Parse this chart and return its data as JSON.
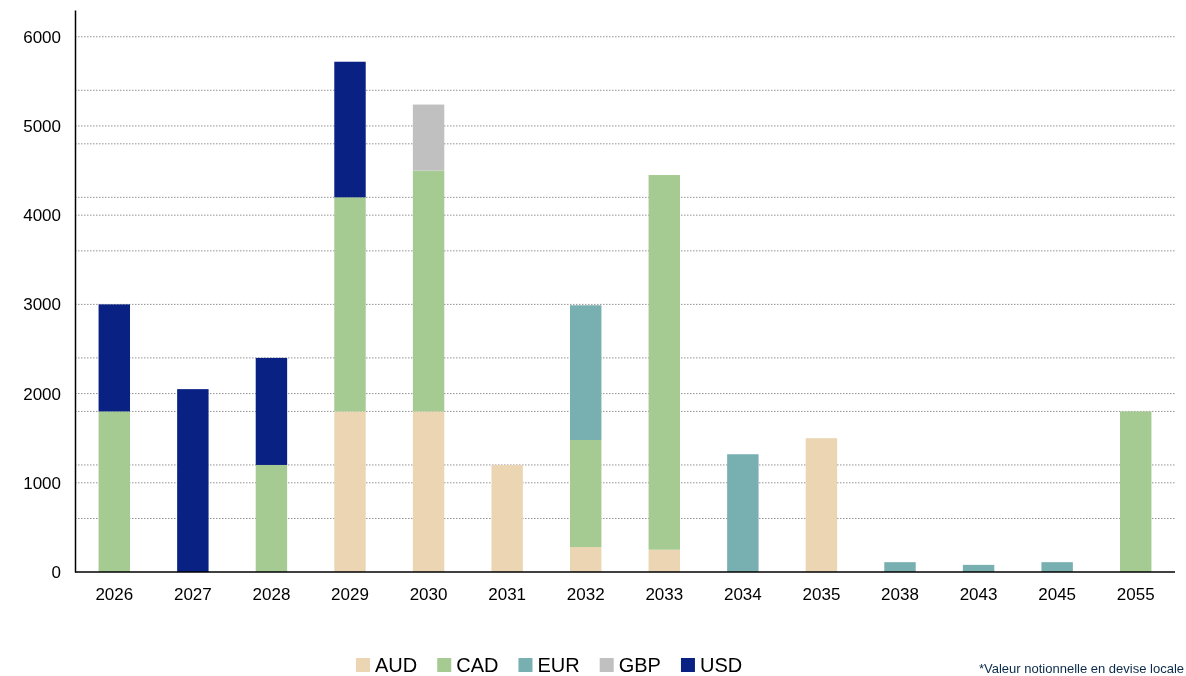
{
  "chart_data": {
    "type": "bar",
    "stacked": true,
    "categories": [
      "2026",
      "2027",
      "2028",
      "2029",
      "2030",
      "2031",
      "2032",
      "2033",
      "2034",
      "2035",
      "2038",
      "2043",
      "2045",
      "2055"
    ],
    "series": [
      {
        "name": "AUD",
        "color": "#ecd5b3",
        "values": [
          null,
          null,
          null,
          1800,
          1800,
          1200,
          280,
          250,
          null,
          1500,
          null,
          null,
          null,
          null
        ]
      },
      {
        "name": "CAD",
        "color": "#a5cb93",
        "values": [
          1800,
          null,
          1200,
          2400,
          2700,
          null,
          1200,
          4200,
          null,
          null,
          null,
          null,
          null,
          1800
        ]
      },
      {
        "name": "EUR",
        "color": "#78afb0",
        "values": [
          null,
          null,
          null,
          null,
          null,
          null,
          1510,
          null,
          1320,
          null,
          110,
          80,
          110,
          null
        ]
      },
      {
        "name": "GBP",
        "color": "#c0c0c0",
        "values": [
          null,
          null,
          null,
          null,
          740,
          null,
          null,
          null,
          null,
          null,
          null,
          null,
          null,
          null
        ]
      },
      {
        "name": "USD",
        "color": "#0a2184",
        "values": [
          1200,
          2050,
          1200,
          1520,
          null,
          null,
          null,
          null,
          null,
          null,
          null,
          null,
          null,
          null
        ]
      }
    ],
    "ylim": [
      0,
      6300
    ],
    "yticks": [
      0,
      {
        "value": 600,
        "label": null
      },
      1000,
      {
        "value": 1200,
        "label": null
      },
      {
        "value": 1800,
        "label": null
      },
      2000,
      {
        "value": 2400,
        "label": null
      },
      3000,
      {
        "value": 3600,
        "label": null
      },
      4000,
      {
        "value": 4200,
        "label": null
      },
      {
        "value": 4800,
        "label": null
      },
      5000,
      {
        "value": 5400,
        "label": null
      },
      6000
    ],
    "grid": "y",
    "legend": "bottom",
    "annotations": [
      "*Valeur notionnelle en devise locale"
    ]
  }
}
